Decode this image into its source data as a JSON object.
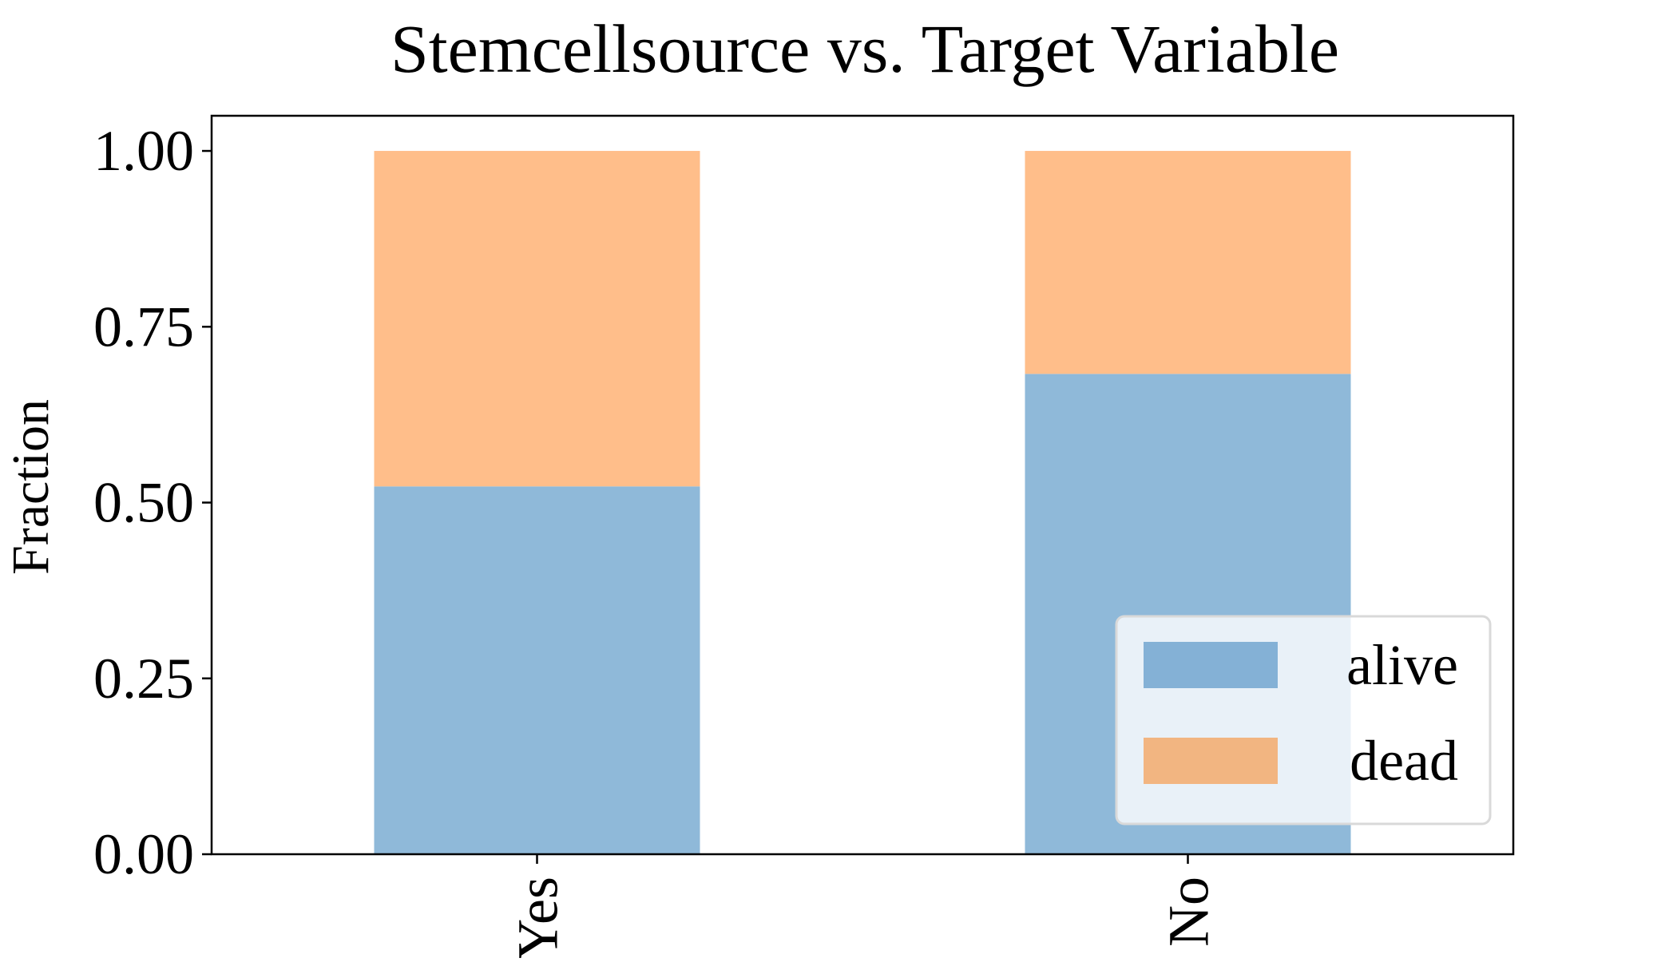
{
  "chart_data": {
    "type": "bar",
    "stacked": true,
    "title": "Stemcellsource vs. Target Variable",
    "xlabel": "",
    "ylabel": "Fraction",
    "categories": [
      "Yes",
      "No"
    ],
    "series": [
      {
        "name": "alive",
        "values": [
          0.523,
          0.683
        ],
        "color": "#8fb9d9"
      },
      {
        "name": "dead",
        "values": [
          0.477,
          0.317
        ],
        "color": "#ffbe8a"
      }
    ],
    "ylim": [
      0,
      1.05
    ],
    "yticks": [
      "0.00",
      "0.25",
      "0.50",
      "0.75",
      "1.00"
    ],
    "grid": false,
    "legend": {
      "placement": "lower-right",
      "swatch_colors": [
        "#84b1d6",
        "#f2b581"
      ]
    }
  }
}
